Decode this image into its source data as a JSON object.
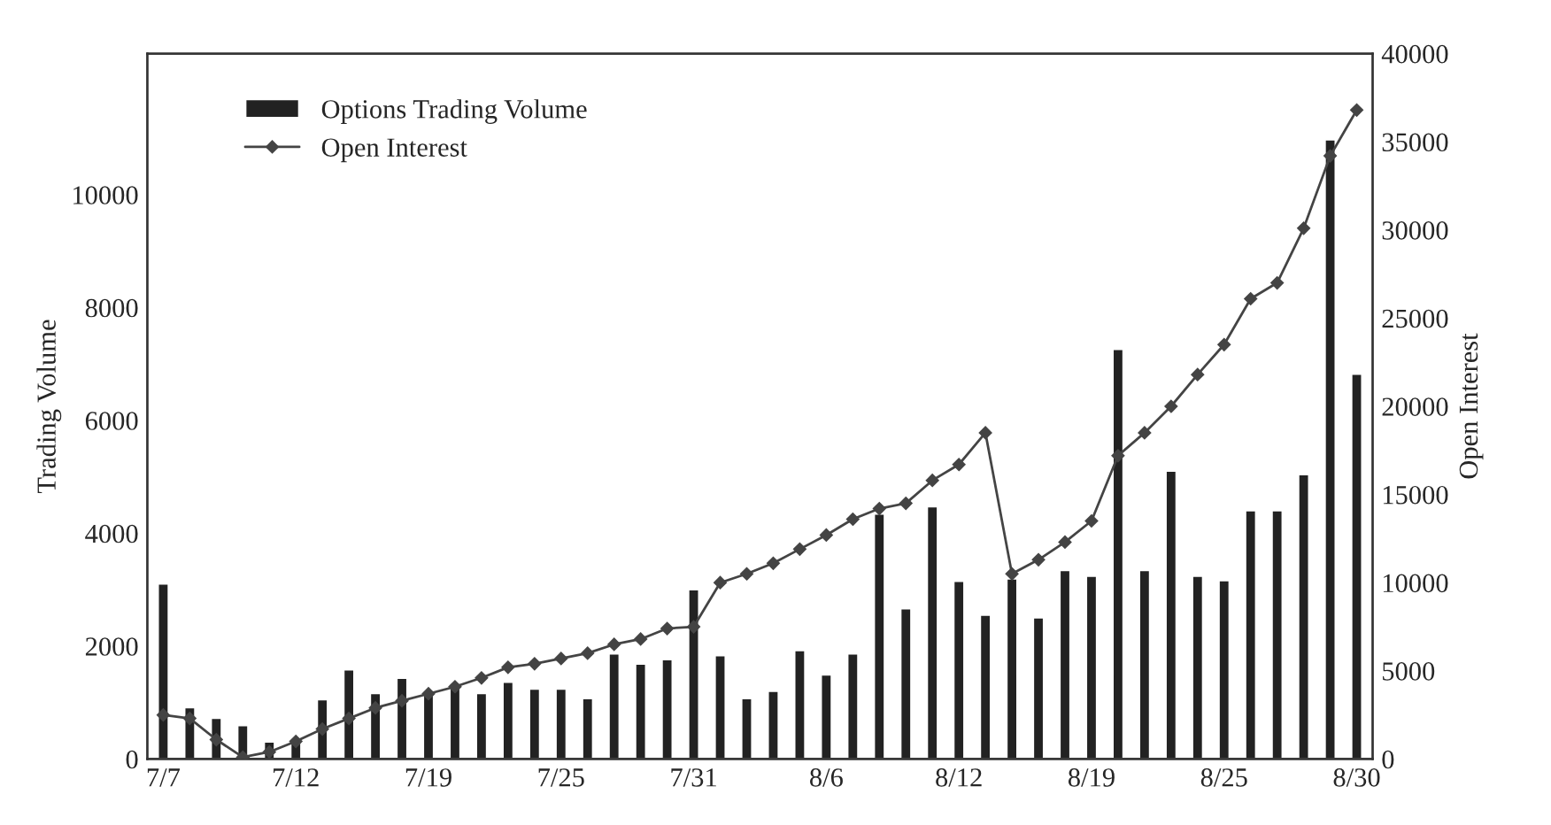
{
  "chart_data": {
    "type": "bar",
    "xlabel": null,
    "ylabel": "Trading Volume",
    "y2label": "Open Interest",
    "categories": [
      "7/7",
      null,
      null,
      null,
      null,
      "7/12",
      null,
      null,
      null,
      null,
      "7/19",
      null,
      null,
      null,
      null,
      "7/25",
      null,
      null,
      null,
      null,
      "7/31",
      null,
      null,
      null,
      null,
      "8/6",
      null,
      null,
      null,
      null,
      "8/12",
      null,
      null,
      null,
      null,
      "8/19",
      null,
      null,
      null,
      null,
      "8/25",
      null,
      null,
      null,
      null,
      "8/30"
    ],
    "series": [
      {
        "name": "Options Trading Volume",
        "color": "#222222",
        "values": [
          3110,
          920,
          730,
          600,
          310,
          340,
          1060,
          1590,
          1170,
          1440,
          1170,
          1290,
          1170,
          1370,
          1250,
          1250,
          1080,
          1870,
          1690,
          1770,
          3010,
          1840,
          1080,
          1210,
          1930,
          1500,
          1870,
          4350,
          2670,
          4480,
          3160,
          2560,
          3200,
          2510,
          3350,
          3250,
          7270,
          3350,
          5110,
          3250,
          3170,
          4410,
          4410,
          5050,
          10980,
          6830
        ]
      },
      {
        "name": "Open Interest",
        "type": "line",
        "axis": "y2",
        "color": "#444444",
        "marker": "diamond",
        "values": [
          2500,
          2300,
          1100,
          100,
          400,
          1000,
          1700,
          2300,
          2900,
          3300,
          3700,
          4100,
          4600,
          5200,
          5400,
          5700,
          6000,
          6500,
          6800,
          7400,
          7500,
          10000,
          10500,
          11100,
          11900,
          12700,
          13600,
          14200,
          14500,
          15800,
          16700,
          18500,
          10500,
          11300,
          12300,
          13500,
          17200,
          18500,
          20000,
          21800,
          23500,
          26100,
          27000,
          30100,
          34200,
          36800
        ]
      }
    ],
    "ylim": [
      0,
      12500
    ],
    "yticks": [
      0,
      2000,
      4000,
      6000,
      8000,
      10000
    ],
    "y2lim": [
      0,
      40000
    ],
    "y2ticks": [
      0,
      5000,
      10000,
      15000,
      20000,
      25000,
      30000,
      35000,
      40000
    ],
    "legend": "top left",
    "grid": false
  }
}
